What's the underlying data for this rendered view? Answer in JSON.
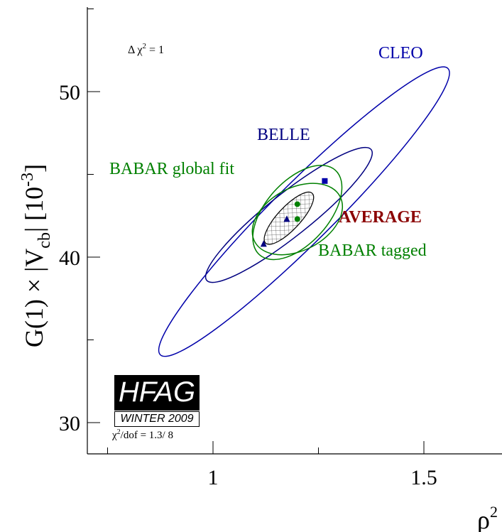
{
  "chart_data": {
    "type": "scatter",
    "title": "",
    "xlabel": "ρ²",
    "ylabel": "G(1) × |V_cb| [10⁻³]",
    "xlim": [
      0.72,
      1.7
    ],
    "ylim": [
      28.3,
      55.0
    ],
    "x_ticks": [
      1,
      1.5
    ],
    "y_ticks": [
      30,
      40,
      50
    ],
    "y_tick_labels": [
      "30",
      "40",
      "50"
    ],
    "x_tick_labels": [
      "1",
      "1.5"
    ],
    "annotation": "Δ χ² = 1",
    "series": [
      {
        "name": "CLEO",
        "type": "ellipse",
        "color": "#0000aa",
        "center": [
          1.215,
          42.75
        ],
        "points": [
          [
            0.875,
            34.1
          ],
          [
            1.557,
            51.4
          ]
        ]
      },
      {
        "name": "BELLE",
        "type": "ellipse",
        "color": "#000080",
        "center": [
          1.165,
          42.35
        ],
        "points": [
          [
            0.985,
            38.6
          ],
          [
            1.375,
            46.5
          ]
        ]
      },
      {
        "name": "BABAR global fit",
        "type": "ellipse",
        "color": "#008000",
        "center": [
          1.195,
          43.1
        ],
        "points": [
          [
            1.12,
            40.7
          ],
          [
            1.27,
            44.6
          ]
        ]
      },
      {
        "name": "BABAR tagged",
        "type": "ellipse",
        "color": "#008000",
        "center": [
          1.195,
          42.3
        ],
        "points": [
          [
            1.12,
            40.7
          ],
          [
            1.27,
            43.9
          ]
        ]
      },
      {
        "name": "AVERAGE",
        "type": "ellipse",
        "color": "#8b0000",
        "center": [
          1.18,
          42.35
        ],
        "points": [
          [
            1.12,
            40.8
          ],
          [
            1.23,
            43.8
          ]
        ]
      }
    ],
    "markers": [
      {
        "series": "BELLE",
        "shape": "square",
        "color": "#0000aa",
        "x": 1.265,
        "y": 44.6
      },
      {
        "series": "BELLE",
        "shape": "triangle",
        "color": "#000080",
        "x": 1.12,
        "y": 40.8
      },
      {
        "series": "AVERAGE",
        "shape": "triangle",
        "color": "#000080",
        "x": 1.175,
        "y": 42.3
      },
      {
        "series": "BABAR global fit",
        "shape": "circle",
        "color": "#008000",
        "x": 1.2,
        "y": 43.2
      },
      {
        "series": "BABAR tagged",
        "shape": "circle",
        "color": "#008000",
        "x": 1.2,
        "y": 42.3
      }
    ]
  },
  "labels": {
    "cleo": "CLEO",
    "belle": "BELLE",
    "babar_global": "BABAR global fit",
    "average": "AVERAGE",
    "babar_tagged": "BABAR tagged",
    "delta_chi2": "Δ χ",
    "delta_chi2_sup": "2",
    "delta_chi2_rest": " = 1",
    "y_axis_main": "G(1) × |V",
    "y_axis_sub": "cb",
    "y_axis_rest": "| [10",
    "y_axis_sup": "-3",
    "y_axis_close": "]",
    "x_axis": "ρ",
    "x_axis_sup": "2"
  },
  "hfag": {
    "title": "HFAG",
    "season": "WINTER 2009",
    "chi2_prefix": "χ",
    "chi2_sup": "2",
    "chi2_rest": "/dof = 1.3/ 8"
  },
  "colors": {
    "cleo": "#0000aa",
    "belle": "#000080",
    "babar": "#008000",
    "average": "#8b0000",
    "hatch": "#555555"
  }
}
